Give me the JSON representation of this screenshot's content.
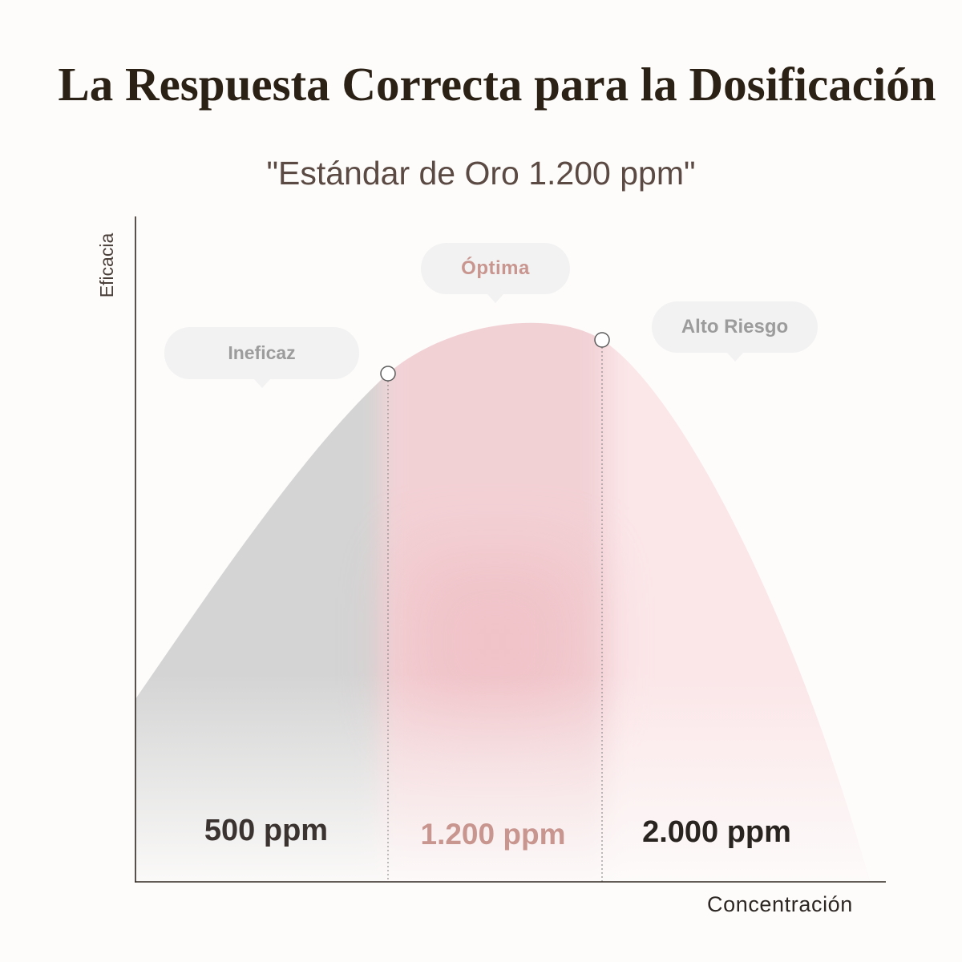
{
  "chart_data": {
    "type": "area",
    "title": "La Respuesta Correcta para la Dosificación",
    "subtitle": "\"Estándar de Oro 1.200 ppm\"",
    "xlabel": "Concentración",
    "ylabel": "Eficacia",
    "grid": false,
    "zones": [
      {
        "label": "Ineficaz",
        "value_label": "500 ppm",
        "fill": "#d4d4d4",
        "callout_color": "#9c9c9c",
        "value_color": "#3a3330"
      },
      {
        "label": "Óptima",
        "value_label": "1.200 ppm",
        "fill": "#f2d1d5",
        "callout_color": "#c8958f",
        "value_color": "#c8958f"
      },
      {
        "label": "Alto Riesgo",
        "value_label": "2.000 ppm",
        "fill": "#fbe6e8",
        "callout_color": "#9c9c9c",
        "value_color": "#2a2421"
      }
    ]
  },
  "colors": {
    "background": "#fdfcfb",
    "title": "#2b2115",
    "subtitle": "#5b4a43",
    "axis": "#2f2620"
  }
}
